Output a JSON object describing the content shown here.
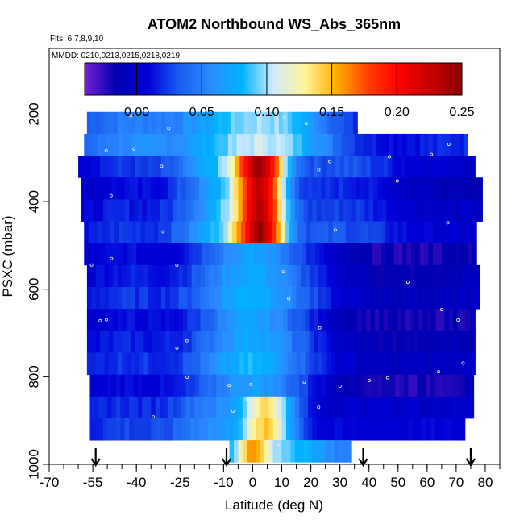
{
  "chart_data": {
    "type": "heatmap",
    "title": "ATOM2 Northbound WS_Abs_365nm",
    "flights_text": "Flts: 6,7,8,9,10",
    "dates_text": "MMDD: 0210,0213,0215,0218,0219",
    "xlabel": "Latitude (deg N)",
    "ylabel": "PSXC (mbar)",
    "xlim": [
      -70,
      85
    ],
    "ylim": [
      1000,
      50
    ],
    "x_ticks": [
      -70,
      -55,
      -40,
      -25,
      -10,
      0,
      10,
      20,
      30,
      40,
      50,
      60,
      70,
      80
    ],
    "x_tick_labels": [
      "-70",
      "-55",
      "-40",
      "-25",
      "-10",
      "0",
      "10",
      "20",
      "30",
      "40",
      "50",
      "60",
      "70",
      "80"
    ],
    "y_ticks": [
      200,
      400,
      600,
      800,
      1000
    ],
    "y_tick_labels": [
      "200",
      "400",
      "600",
      "800",
      "1000"
    ],
    "colorbar": {
      "range": [
        -0.04,
        0.25
      ],
      "ticks": [
        0.0,
        0.05,
        0.1,
        0.15,
        0.2,
        0.25
      ],
      "tick_labels": [
        "0.00",
        "0.05",
        "0.10",
        "0.15",
        "0.20",
        "0.25"
      ],
      "colors": [
        "#7a1fd6",
        "#0000b0",
        "#0000d8",
        "#1a5cf0",
        "#2a8cff",
        "#00b4ff",
        "#cfeaff",
        "#fff59a",
        "#ffb000",
        "#ff4000",
        "#ff0000",
        "#c80000",
        "#8a0000"
      ]
    },
    "pressure_bands": [
      {
        "p_top": 195,
        "p_bot": 245,
        "lat_start": -57,
        "lat_end": 36,
        "type": "upper"
      },
      {
        "p_top": 245,
        "p_bot": 295,
        "lat_start": -58,
        "lat_end": 73,
        "type": "upper"
      },
      {
        "p_top": 295,
        "p_bot": 345,
        "lat_start": -60,
        "lat_end": 76,
        "type": "plume"
      },
      {
        "p_top": 345,
        "p_bot": 395,
        "lat_start": -59,
        "lat_end": 78,
        "type": "plume"
      },
      {
        "p_top": 395,
        "p_bot": 445,
        "lat_start": -59,
        "lat_end": 78,
        "type": "plume"
      },
      {
        "p_top": 445,
        "p_bot": 495,
        "lat_start": -58,
        "lat_end": 77,
        "type": "plume"
      },
      {
        "p_top": 495,
        "p_bot": 545,
        "lat_start": -58,
        "lat_end": 77,
        "type": "mid"
      },
      {
        "p_top": 545,
        "p_bot": 595,
        "lat_start": -57,
        "lat_end": 77,
        "type": "mid"
      },
      {
        "p_top": 595,
        "p_bot": 645,
        "lat_start": -57,
        "lat_end": 77,
        "type": "mid"
      },
      {
        "p_top": 645,
        "p_bot": 695,
        "lat_start": -57,
        "lat_end": 76,
        "type": "mid"
      },
      {
        "p_top": 695,
        "p_bot": 745,
        "lat_start": -57,
        "lat_end": 76,
        "type": "mid"
      },
      {
        "p_top": 745,
        "p_bot": 795,
        "lat_start": -57,
        "lat_end": 76,
        "type": "mid"
      },
      {
        "p_top": 795,
        "p_bot": 845,
        "lat_start": -56,
        "lat_end": 76,
        "type": "mid"
      },
      {
        "p_top": 845,
        "p_bot": 895,
        "lat_start": -56,
        "lat_end": 76,
        "type": "low"
      },
      {
        "p_top": 895,
        "p_bot": 945,
        "lat_start": -56,
        "lat_end": 72,
        "type": "low"
      },
      {
        "p_top": 945,
        "p_bot": 995,
        "lat_start": -8,
        "lat_end": 34,
        "type": "surface"
      }
    ],
    "arrow_latitudes": [
      -54,
      -9,
      38,
      75
    ]
  }
}
